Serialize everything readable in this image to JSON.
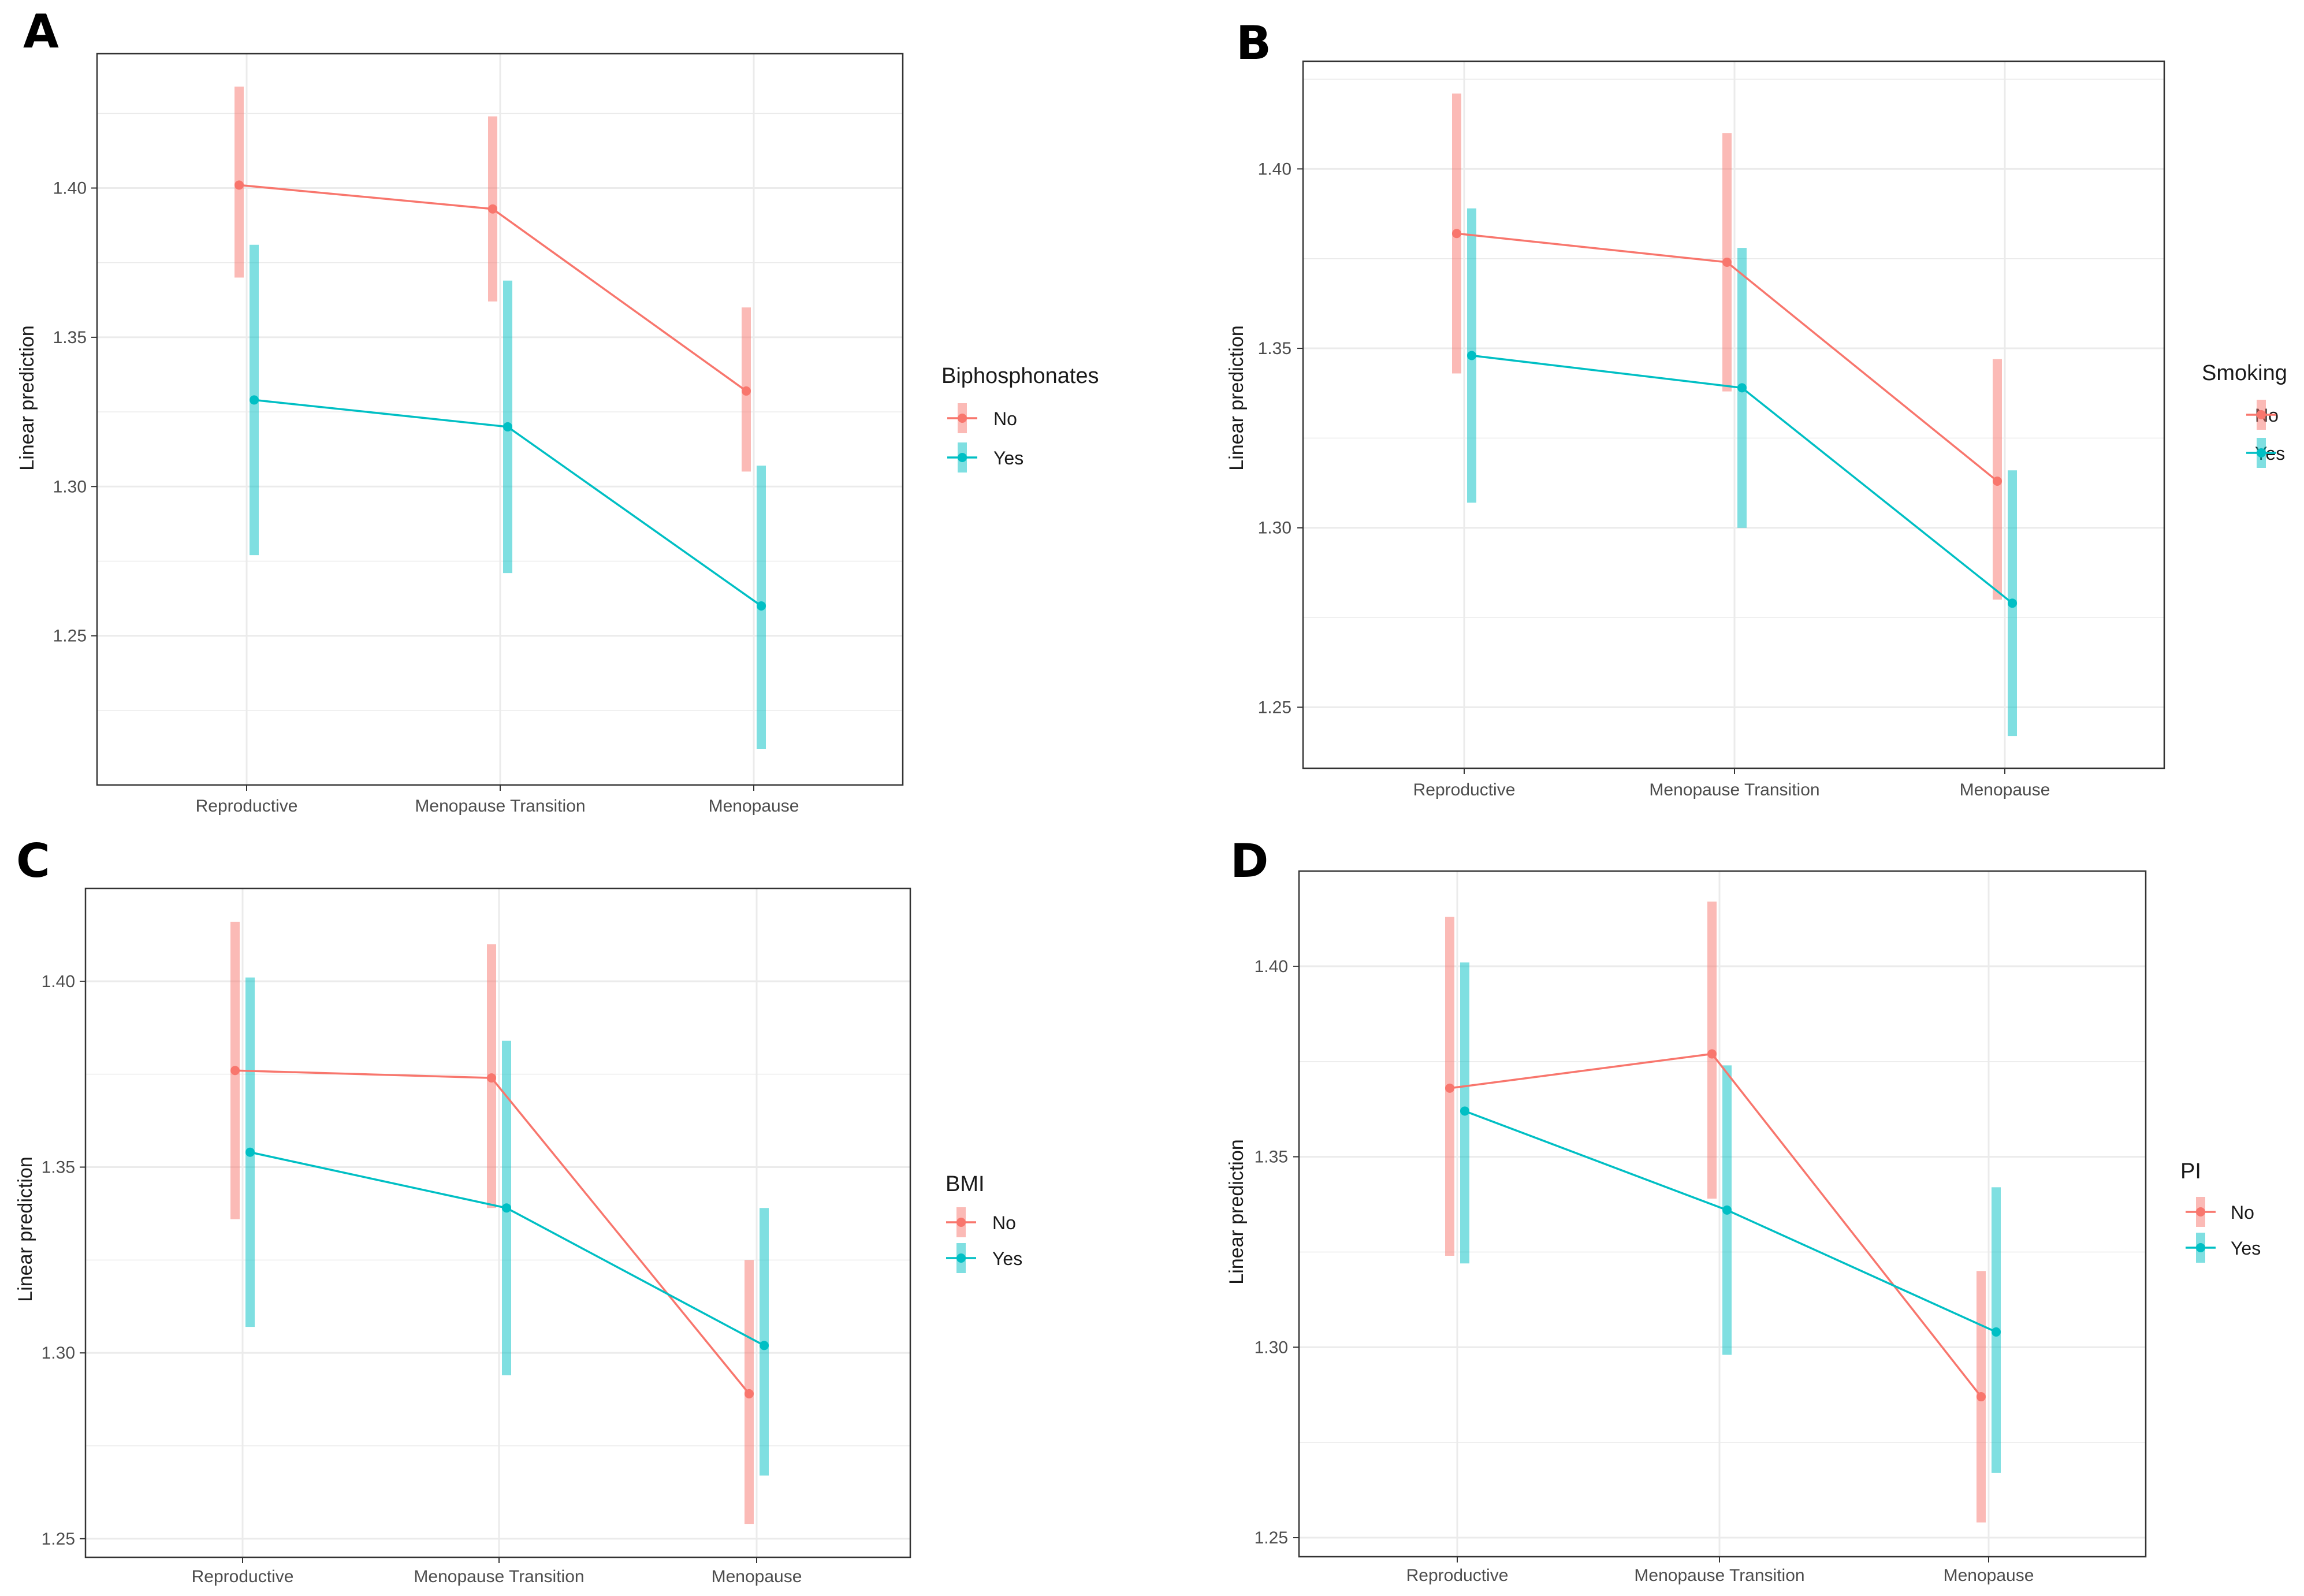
{
  "colors": {
    "no": "#f8766d",
    "yes": "#00bfc4",
    "grid": "#ebebeb",
    "panel_border": "#333333"
  },
  "chart_data": [
    {
      "panel": "A",
      "type": "line",
      "categories": [
        "Reproductive",
        "Menopause Transition",
        "Menopause"
      ],
      "ylabel": "Linear prediction",
      "xlabel": "",
      "ylim": [
        1.2,
        1.445
      ],
      "yticks": [
        1.25,
        1.3,
        1.35,
        1.4
      ],
      "ytick_labels": [
        "1.25",
        "1.30",
        "1.35",
        "1.40"
      ],
      "legend_title": "Biphosphonates",
      "series": [
        {
          "name": "No",
          "values": [
            1.401,
            1.393,
            1.332
          ],
          "lower": [
            1.37,
            1.362,
            1.305
          ],
          "upper": [
            1.434,
            1.424,
            1.36
          ]
        },
        {
          "name": "Yes",
          "values": [
            1.329,
            1.32,
            1.26
          ],
          "lower": [
            1.277,
            1.271,
            1.212
          ],
          "upper": [
            1.381,
            1.369,
            1.307
          ]
        }
      ]
    },
    {
      "panel": "B",
      "type": "line",
      "categories": [
        "Reproductive",
        "Menopause Transition",
        "Menopause"
      ],
      "ylabel": "Linear prediction",
      "xlabel": "",
      "ylim": [
        1.233,
        1.43
      ],
      "yticks": [
        1.25,
        1.3,
        1.35,
        1.4
      ],
      "ytick_labels": [
        "1.25",
        "1.30",
        "1.35",
        "1.40"
      ],
      "legend_title": "Smoking",
      "series": [
        {
          "name": "No",
          "values": [
            1.382,
            1.374,
            1.313
          ],
          "lower": [
            1.343,
            1.338,
            1.28
          ],
          "upper": [
            1.421,
            1.41,
            1.347
          ]
        },
        {
          "name": "Yes",
          "values": [
            1.348,
            1.339,
            1.279
          ],
          "lower": [
            1.307,
            1.3,
            1.242
          ],
          "upper": [
            1.389,
            1.378,
            1.316
          ]
        }
      ]
    },
    {
      "panel": "C",
      "type": "line",
      "categories": [
        "Reproductive",
        "Menopause Transition",
        "Menopause"
      ],
      "ylabel": "Linear prediction",
      "xlabel": "",
      "ylim": [
        1.245,
        1.425
      ],
      "yticks": [
        1.25,
        1.3,
        1.35,
        1.4
      ],
      "ytick_labels": [
        "1.25",
        "1.30",
        "1.35",
        "1.40"
      ],
      "legend_title": "BMI",
      "series": [
        {
          "name": "No",
          "values": [
            1.376,
            1.374,
            1.289
          ],
          "lower": [
            1.336,
            1.339,
            1.254
          ],
          "upper": [
            1.416,
            1.41,
            1.325
          ]
        },
        {
          "name": "Yes",
          "values": [
            1.354,
            1.339,
            1.302
          ],
          "lower": [
            1.307,
            1.294,
            1.267
          ],
          "upper": [
            1.401,
            1.384,
            1.339
          ]
        }
      ]
    },
    {
      "panel": "D",
      "type": "line",
      "categories": [
        "Reproductive",
        "Menopause Transition",
        "Menopause"
      ],
      "ylabel": "Linear prediction",
      "xlabel": "",
      "ylim": [
        1.245,
        1.425
      ],
      "yticks": [
        1.25,
        1.3,
        1.35,
        1.4
      ],
      "ytick_labels": [
        "1.25",
        "1.30",
        "1.35",
        "1.40"
      ],
      "legend_title": "PI",
      "series": [
        {
          "name": "No",
          "values": [
            1.368,
            1.377,
            1.287
          ],
          "lower": [
            1.324,
            1.339,
            1.254
          ],
          "upper": [
            1.413,
            1.417,
            1.32
          ]
        },
        {
          "name": "Yes",
          "values": [
            1.362,
            1.336,
            1.304
          ],
          "lower": [
            1.322,
            1.298,
            1.267
          ],
          "upper": [
            1.401,
            1.374,
            1.342
          ]
        }
      ]
    }
  ]
}
